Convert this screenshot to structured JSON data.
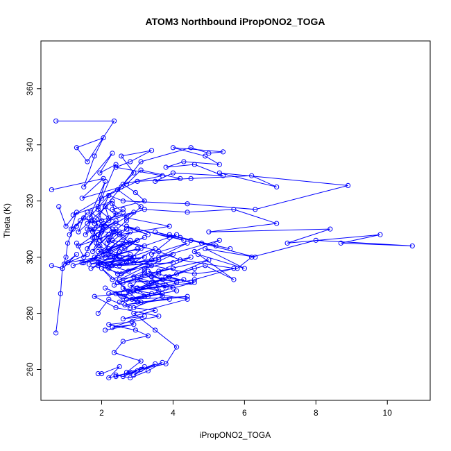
{
  "chart_data": {
    "type": "line",
    "title": "ATOM3 Northbound iPropONO2_TOGA",
    "xlabel": "iPropONO2_TOGA",
    "ylabel": "Theta (K)",
    "xlim": [
      0.3,
      11.2
    ],
    "ylim": [
      249,
      377
    ],
    "xticks": [
      2,
      4,
      6,
      8,
      10
    ],
    "yticks": [
      260,
      280,
      300,
      320,
      340,
      360
    ],
    "grid": false,
    "legend": "none",
    "marker": "open-circle",
    "color": "#0000ff",
    "series": [
      {
        "x": [
          0.72,
          2.35,
          1.6,
          1.3,
          2.05,
          1.8,
          1.5,
          2.3,
          1.95,
          2.4,
          1.9,
          2.1,
          1.65,
          2.2,
          1.75,
          2.6,
          2.0,
          1.85,
          2.05,
          2.5,
          1.7,
          2.25,
          2.8,
          2.1,
          1.95,
          2.7,
          3.1,
          2.4,
          2.2,
          2.9,
          1.9,
          2.55,
          3.4,
          2.3,
          2.0,
          2.75,
          2.45,
          3.2,
          2.65,
          2.1,
          3.0,
          2.5,
          1.8,
          2.4,
          3.6,
          2.85,
          2.2,
          2.95,
          3.3,
          2.6,
          2.35,
          3.1,
          2.7,
          3.8,
          4.1,
          3.5,
          2.9,
          4.4,
          3.0,
          4.6,
          5.7,
          4.2,
          3.6,
          2.8,
          2.5,
          3.9,
          2.7,
          2.3,
          3.2,
          2.95,
          2.6,
          3.7,
          2.4,
          2.8,
          3.4,
          2.55,
          2.9,
          2.45,
          3.1,
          2.7,
          2.35,
          2.2,
          2.65
        ],
        "y": [
          348.5,
          348.5,
          334,
          339,
          342.5,
          336,
          325,
          337,
          330,
          333,
          318,
          327,
          314,
          322,
          309,
          317,
          311,
          305,
          312,
          308,
          310,
          302,
          306,
          300,
          304,
          298,
          303,
          301,
          296,
          300,
          297,
          294,
          299,
          292,
          296,
          288,
          291,
          295,
          286,
          289,
          284,
          287,
          286,
          282,
          279,
          277,
          276,
          274,
          272,
          270,
          266,
          263,
          259,
          262,
          268,
          274,
          280,
          285,
          288,
          292,
          296,
          299,
          302,
          305,
          308,
          311,
          314,
          317,
          320,
          323,
          326,
          329,
          332,
          334,
          338,
          336,
          330,
          324,
          318,
          313,
          309,
          306,
          303
        ]
      },
      {
        "x": [
          0.6,
          2.05,
          1.45,
          2.55,
          1.2,
          2.3,
          1.6,
          2.9,
          1.9,
          2.4,
          1.35,
          2.7,
          1.8,
          3.2,
          2.0,
          2.6,
          1.5,
          3.0,
          2.25,
          1.7,
          2.8,
          2.15,
          3.5,
          2.45,
          1.95,
          2.75,
          3.3,
          2.5,
          4.0,
          3.1,
          2.35,
          3.6,
          2.6,
          4.3,
          3.0,
          2.2,
          3.8,
          2.9,
          4.6,
          3.4,
          2.7,
          4.1,
          3.2,
          2.5,
          3.7,
          2.85,
          4.4,
          3.1,
          2.65,
          3.9
        ],
        "y": [
          324,
          328,
          321,
          325,
          315,
          320,
          312,
          316,
          308,
          313,
          304,
          310,
          300,
          307,
          302,
          305,
          298,
          303,
          300,
          296,
          301,
          297,
          299,
          294,
          298,
          295,
          297,
          292,
          296,
          293,
          290,
          294,
          291,
          292,
          289,
          287,
          290,
          288,
          291,
          287,
          285,
          288,
          286,
          284,
          287,
          285,
          286,
          284,
          283,
          285
        ]
      },
      {
        "x": [
          0.6,
          0.9,
          1.3,
          0.95,
          1.6,
          1.05,
          1.9,
          1.2,
          2.2,
          1.45,
          2.5,
          1.65,
          2.85,
          1.9,
          3.2,
          2.1,
          3.6,
          2.3,
          4.0,
          2.5
        ],
        "y": [
          297,
          296,
          301,
          297.5,
          301,
          298,
          300,
          297,
          301,
          298,
          300,
          297.5,
          299,
          298,
          300,
          297,
          299,
          297,
          298,
          297
        ]
      },
      {
        "x": [
          0.72,
          0.85,
          0.9,
          1.0,
          1.05,
          1.2,
          1.1,
          1.4,
          1.3,
          1.6,
          1.5,
          1.8,
          1.7,
          2.0,
          1.9,
          2.2,
          2.1,
          2.4,
          2.3,
          2.6
        ],
        "y": [
          273,
          287,
          296,
          300,
          305,
          310,
          308,
          313,
          311,
          316,
          314,
          312,
          316,
          313,
          317,
          314,
          318,
          315,
          319,
          316
        ]
      },
      {
        "x": [
          0.8,
          1.0,
          1.3,
          1.15,
          1.5,
          1.35,
          1.7,
          1.55,
          1.9,
          1.75,
          2.1,
          1.95,
          2.3,
          2.15,
          2.5
        ],
        "y": [
          318,
          311,
          316,
          310,
          314,
          309,
          313,
          308,
          312,
          307,
          311,
          306,
          310,
          305,
          309
        ]
      },
      {
        "x": [
          1.8,
          3.1,
          4.5,
          5.0,
          5.4,
          4.0,
          4.9,
          5.3,
          4.3,
          3.8,
          4.6,
          5.4,
          4.0,
          3.5,
          4.2,
          3.1,
          2.7
        ],
        "y": [
          313,
          334,
          339,
          337,
          337.5,
          339,
          336,
          333,
          334,
          332,
          333,
          329,
          330,
          327,
          328,
          331,
          326
        ]
      },
      {
        "x": [
          2.0,
          3.0,
          4.5,
          6.2,
          6.9,
          5.3,
          8.9,
          6.3,
          4.4,
          2.6,
          2.2
        ],
        "y": [
          321,
          327,
          328,
          329,
          325,
          330,
          325.5,
          317,
          319,
          320,
          322
        ]
      },
      {
        "x": [
          2.2,
          3.2,
          4.4,
          5.7,
          6.9,
          5.0,
          8.4,
          7.2,
          9.8,
          8.7,
          10.7,
          8.0,
          6.2,
          5.8,
          4.6,
          3.4,
          2.4
        ],
        "y": [
          313,
          317,
          316,
          317,
          312,
          309,
          310,
          305,
          308,
          305,
          304,
          306,
          300,
          296,
          294,
          297,
          300
        ]
      },
      {
        "x": [
          2.3,
          3.2,
          4.1,
          3.4,
          4.4,
          3.6,
          5.3,
          4.6,
          5.7,
          4.9,
          3.8,
          4.5,
          3.3,
          4.0,
          2.9
        ],
        "y": [
          306,
          304,
          308,
          301,
          305,
          300,
          306,
          302,
          292,
          297,
          293,
          291,
          295,
          289,
          293
        ]
      },
      {
        "x": [
          1.6,
          2.4,
          3.3,
          2.7,
          3.9,
          3.0,
          4.3,
          3.5,
          4.8,
          3.9,
          5.2,
          4.2,
          5.6,
          4.5,
          6.3,
          4.9,
          6.0,
          4.7
        ],
        "y": [
          310,
          312,
          308,
          311,
          307,
          310,
          306,
          309,
          305,
          308,
          304,
          307,
          303,
          306,
          300,
          303,
          296,
          301
        ]
      },
      {
        "x": [
          1.9,
          2.8,
          3.5,
          2.9,
          4.0,
          3.2,
          4.5,
          3.6,
          5.0,
          3.9,
          4.6,
          3.4,
          4.1,
          3.0,
          3.7,
          2.8,
          3.3,
          2.6
        ],
        "y": [
          302,
          300,
          303,
          298,
          301,
          296,
          300,
          295,
          299,
          293,
          296,
          291,
          294,
          289,
          292,
          287,
          290,
          286
        ]
      },
      {
        "x": [
          1.9,
          2.2,
          2.8,
          2.4,
          3.1,
          2.6,
          3.3,
          2.8,
          3.6,
          3.0,
          3.8,
          3.2,
          4.1,
          3.4,
          3.7,
          2.9,
          3.5,
          2.6,
          3.2,
          2.3,
          2.9,
          2.1
        ],
        "y": [
          280,
          285,
          282,
          287,
          284,
          289,
          286,
          290,
          288,
          292,
          289,
          294,
          291,
          293,
          286,
          282,
          281,
          278,
          279,
          275,
          276,
          274
        ]
      },
      {
        "x": [
          1.9,
          2.0,
          2.5,
          2.2,
          2.8,
          2.4,
          3.0,
          2.6,
          3.2,
          2.9,
          3.5,
          3.1,
          3.7,
          3.3,
          2.8,
          2.4
        ],
        "y": [
          258.5,
          258.5,
          261,
          257,
          259,
          257.5,
          259.5,
          257.5,
          261,
          258,
          262,
          260,
          262.5,
          259.5,
          257,
          258
        ]
      },
      {
        "x": [
          1.3,
          1.5,
          1.8,
          1.6,
          2.0,
          1.75,
          2.2,
          1.9,
          2.4,
          2.05,
          2.6,
          2.2,
          2.8,
          2.35,
          3.0,
          2.5
        ],
        "y": [
          305,
          300,
          307,
          303,
          309,
          302,
          308,
          304,
          310,
          301,
          307,
          303,
          309,
          300,
          306,
          302
        ]
      }
    ]
  }
}
